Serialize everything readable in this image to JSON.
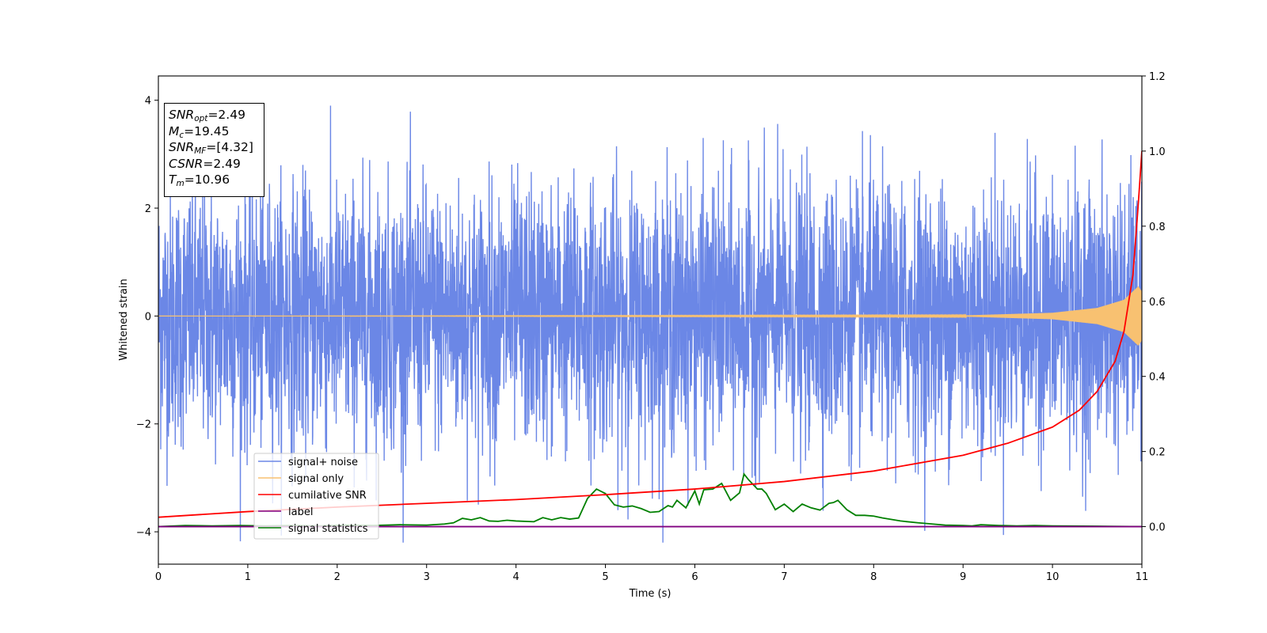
{
  "chart_data": {
    "type": "line",
    "xlabel": "Time (s)",
    "ylabel": "Whitened strain",
    "title": "",
    "xlim": [
      0,
      11
    ],
    "ylim": [
      -4.6,
      4.45
    ],
    "y2lim": [
      -0.1,
      1.2
    ],
    "x_ticks": [
      "0",
      "1",
      "2",
      "3",
      "4",
      "5",
      "6",
      "7",
      "8",
      "9",
      "10",
      "11"
    ],
    "y_ticks": [
      "4",
      "2",
      "0",
      "−2",
      "−4"
    ],
    "y2_ticks": [
      "1.2",
      "1.0",
      "0.8",
      "0.6",
      "0.4",
      "0.2",
      "0.0"
    ],
    "grid": false,
    "legend_position": "lower left",
    "annotation": {
      "snr_opt": "=2.49",
      "mc": "=19.45",
      "snr_mf": "=[4.32]",
      "csnr": "=2.49",
      "tm": "=10.96"
    },
    "series": [
      {
        "name": "signal+ noise",
        "color": "#6b87e6",
        "axis": "left",
        "description_values": "white Gaussian-like noise, sigma ~1.2, extremes near -4.2 and +3.9, over x 0-11"
      },
      {
        "name": "signal only",
        "color": "#f8c171",
        "axis": "left",
        "envelope": [
          [
            0,
            0.0
          ],
          [
            9.0,
            0.01
          ],
          [
            10.0,
            0.06
          ],
          [
            10.5,
            0.15
          ],
          [
            10.8,
            0.3
          ],
          [
            10.96,
            0.55
          ],
          [
            11.0,
            0.45
          ]
        ]
      },
      {
        "name": "cumilative SNR",
        "color": "#ff0000",
        "axis": "right",
        "x": [
          0,
          1,
          2,
          3,
          4,
          5,
          6,
          7,
          8,
          9,
          9.5,
          10,
          10.3,
          10.5,
          10.7,
          10.8,
          10.9,
          10.96,
          11.0
        ],
        "y": [
          0.025,
          0.04,
          0.052,
          0.062,
          0.072,
          0.085,
          0.1,
          0.12,
          0.148,
          0.19,
          0.222,
          0.265,
          0.31,
          0.36,
          0.44,
          0.52,
          0.67,
          0.86,
          1.0
        ]
      },
      {
        "name": "label",
        "color": "#800080",
        "axis": "right",
        "x": [
          0,
          11
        ],
        "y": [
          0,
          0
        ]
      },
      {
        "name": "signal statistics",
        "color": "#008000",
        "axis": "right",
        "x": [
          0,
          0.3,
          0.6,
          0.9,
          1.2,
          1.5,
          1.8,
          2.1,
          2.4,
          2.7,
          3.0,
          3.2,
          3.3,
          3.4,
          3.5,
          3.6,
          3.7,
          3.8,
          3.9,
          4.0,
          4.2,
          4.3,
          4.4,
          4.5,
          4.6,
          4.7,
          4.8,
          4.9,
          5.0,
          5.1,
          5.2,
          5.3,
          5.4,
          5.5,
          5.6,
          5.7,
          5.75,
          5.8,
          5.85,
          5.9,
          6.0,
          6.05,
          6.1,
          6.2,
          6.3,
          6.4,
          6.5,
          6.55,
          6.6,
          6.7,
          6.75,
          6.8,
          6.9,
          7.0,
          7.1,
          7.2,
          7.3,
          7.4,
          7.5,
          7.55,
          7.6,
          7.7,
          7.8,
          7.9,
          8.0,
          8.1,
          8.2,
          8.3,
          8.5,
          8.8,
          9.0,
          9.1,
          9.2,
          9.4,
          9.6,
          9.8,
          10.0,
          10.5,
          11.0
        ],
        "y": [
          0.0,
          0.003,
          0.002,
          0.003,
          0.002,
          0.003,
          0.002,
          0.004,
          0.003,
          0.005,
          0.004,
          0.007,
          0.01,
          0.022,
          0.018,
          0.024,
          0.015,
          0.014,
          0.017,
          0.015,
          0.013,
          0.024,
          0.018,
          0.024,
          0.02,
          0.023,
          0.075,
          0.1,
          0.088,
          0.058,
          0.052,
          0.055,
          0.048,
          0.038,
          0.04,
          0.056,
          0.052,
          0.07,
          0.06,
          0.05,
          0.095,
          0.06,
          0.098,
          0.1,
          0.115,
          0.07,
          0.09,
          0.14,
          0.125,
          0.1,
          0.1,
          0.088,
          0.045,
          0.06,
          0.04,
          0.06,
          0.05,
          0.044,
          0.062,
          0.064,
          0.07,
          0.045,
          0.03,
          0.03,
          0.028,
          0.023,
          0.019,
          0.015,
          0.01,
          0.004,
          0.003,
          0.002,
          0.005,
          0.003,
          0.002,
          0.003,
          0.002,
          0.001,
          0.0
        ]
      }
    ]
  }
}
